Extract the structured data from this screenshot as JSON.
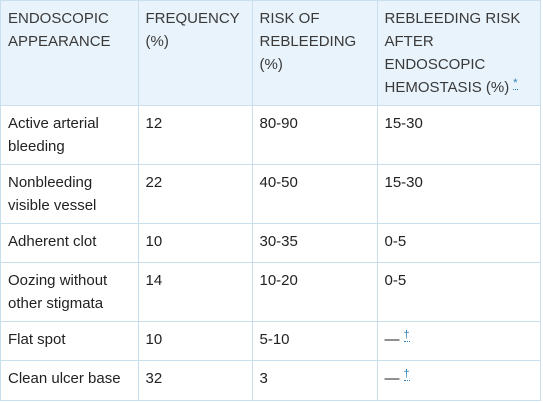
{
  "table": {
    "headers": [
      "ENDOSCOPIC APPEARANCE",
      "FREQUENCY (%)",
      "RISK OF REBLEEDING (%)",
      "REBLEEDING RISK AFTER ENDOSCOPIC HEMOSTASIS (%)"
    ],
    "header_footnote": "*",
    "rows": [
      {
        "appearance": "Active arterial bleeding",
        "frequency": "12",
        "risk": "80-90",
        "after": "15-30",
        "after_note": ""
      },
      {
        "appearance": "Nonbleeding visible vessel",
        "frequency": "22",
        "risk": "40-50",
        "after": "15-30",
        "after_note": ""
      },
      {
        "appearance": "Adherent clot",
        "frequency": "10",
        "risk": "30-35",
        "after": "0-5",
        "after_note": ""
      },
      {
        "appearance": "Oozing without other stigmata",
        "frequency": "14",
        "risk": "10-20",
        "after": "0-5",
        "after_note": ""
      },
      {
        "appearance": "Flat spot",
        "frequency": "10",
        "risk": "5-10",
        "after": "—",
        "after_note": "†"
      },
      {
        "appearance": "Clean ulcer base",
        "frequency": "32",
        "risk": "3",
        "after": "—",
        "after_note": "†"
      }
    ]
  },
  "colors": {
    "header_bg": "#e8f3fb",
    "border": "#c9dfee",
    "footnote_link": "#2a7fb8"
  }
}
